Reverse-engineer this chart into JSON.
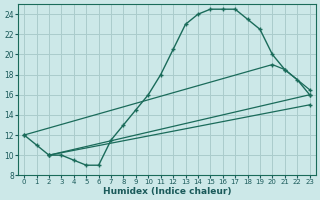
{
  "xlabel": "Humidex (Indice chaleur)",
  "background_color": "#cce8e8",
  "grid_color": "#aacccc",
  "line_color": "#1a6b5a",
  "xlim": [
    -0.5,
    23.5
  ],
  "ylim": [
    8,
    25
  ],
  "xticks": [
    0,
    1,
    2,
    3,
    4,
    5,
    6,
    7,
    8,
    9,
    10,
    11,
    12,
    13,
    14,
    15,
    16,
    17,
    18,
    19,
    20,
    21,
    22,
    23
  ],
  "yticks": [
    8,
    10,
    12,
    14,
    16,
    18,
    20,
    22,
    24
  ],
  "line1_x": [
    0,
    1,
    2,
    3,
    4,
    5,
    6,
    7,
    8,
    9,
    10,
    11,
    12,
    13,
    14,
    15,
    16,
    17,
    18,
    19,
    20,
    21,
    22,
    23
  ],
  "line1_y": [
    12,
    11,
    10,
    10,
    9.5,
    9,
    9,
    11.5,
    13,
    14.5,
    16,
    18,
    20.5,
    23,
    24,
    24.5,
    24.5,
    24.5,
    23.5,
    22.5,
    20,
    18.5,
    17.5,
    16
  ],
  "line2_x": [
    0,
    20,
    21,
    23
  ],
  "line2_y": [
    12,
    19,
    18.5,
    16.5
  ],
  "line3_x": [
    2,
    23
  ],
  "line3_y": [
    10,
    16
  ],
  "line4_x": [
    2,
    23
  ],
  "line4_y": [
    10,
    15
  ]
}
